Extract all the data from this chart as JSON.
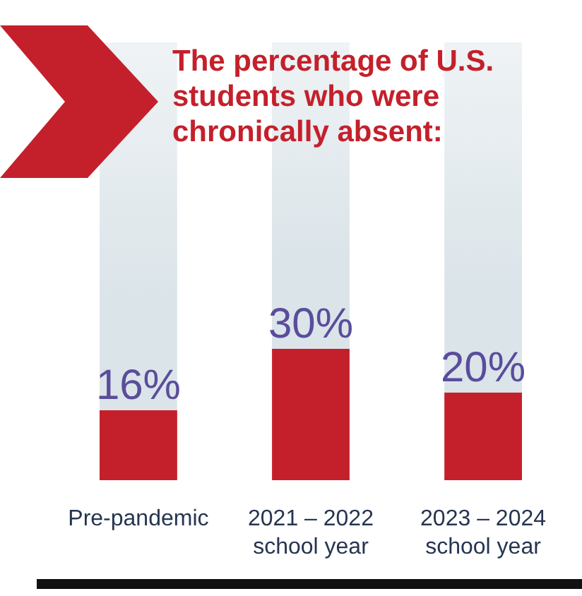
{
  "chart_data": {
    "type": "bar",
    "stacked": true,
    "title": "The percentage of U.S. students who were chronically absent:",
    "categories": [
      "Pre-pandemic",
      "2021 – 2022 school year",
      "2023 – 2024 school year"
    ],
    "series": [
      {
        "color": "#c4202b",
        "values": [
          16,
          30,
          20
        ],
        "value_labels": [
          "16%",
          "30%",
          "20%"
        ]
      },
      {
        "color": "#dbe4e9",
        "values": [
          84,
          70,
          80
        ]
      }
    ],
    "ylim": [
      0,
      100
    ],
    "tick_labels": "x"
  }
}
